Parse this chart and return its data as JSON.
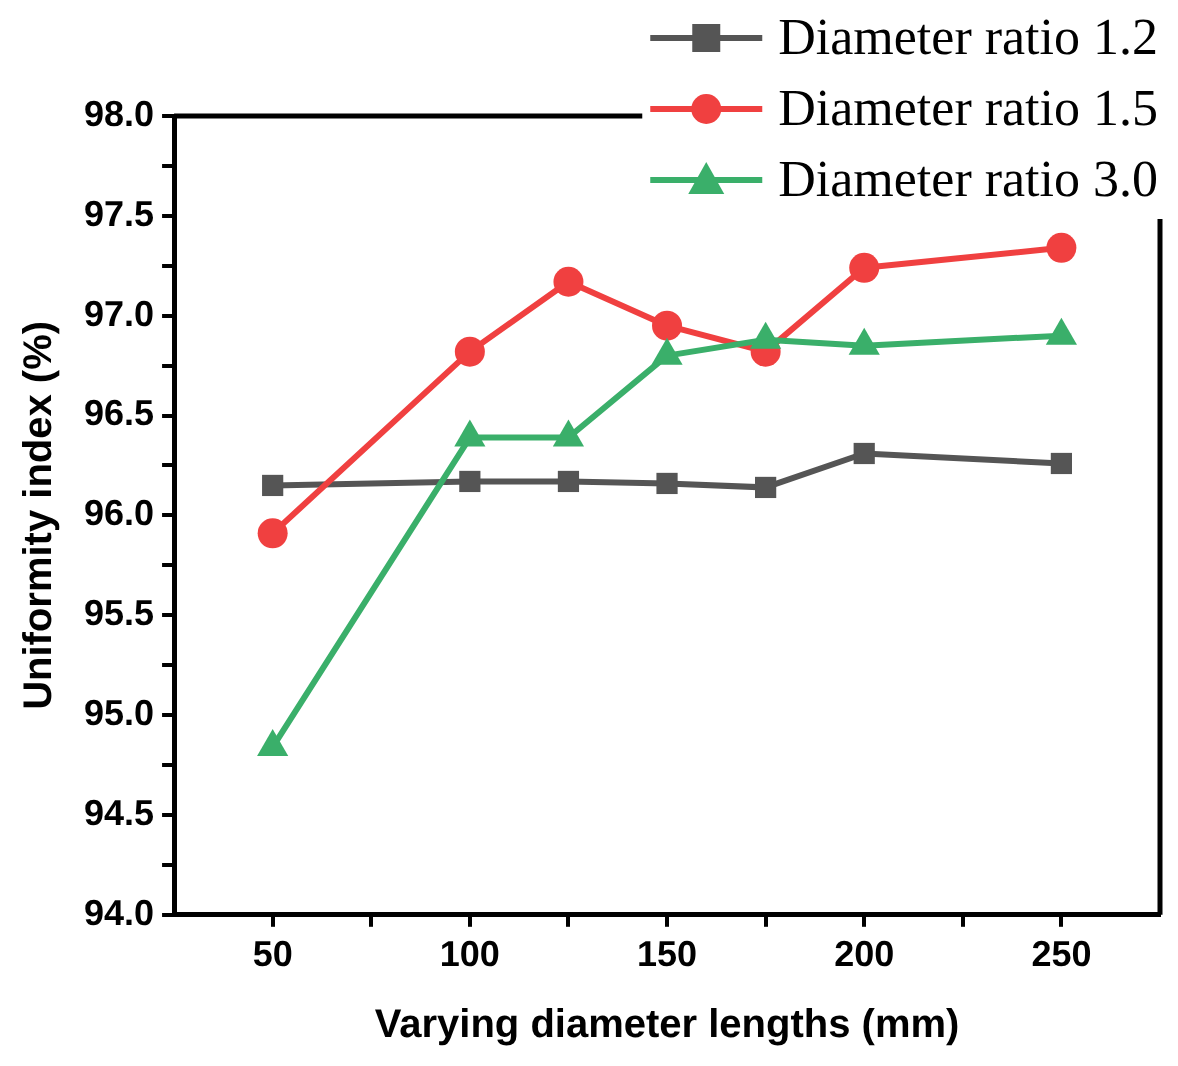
{
  "chart_data": {
    "type": "line",
    "xlabel": "Varying diameter lengths (mm)",
    "ylabel": "Uniformity index (%)",
    "x": [
      50,
      100,
      125,
      150,
      175,
      200,
      250
    ],
    "xlim": [
      25,
      275
    ],
    "xticks": [
      50,
      {
        "value": 75,
        "label": null
      },
      100,
      {
        "value": 125,
        "label": null
      },
      150,
      {
        "value": 175,
        "label": null
      },
      200,
      {
        "value": 225,
        "label": null
      },
      250
    ],
    "ylim": [
      94,
      98
    ],
    "yticks": [
      {
        "value": 94,
        "label": "94.0"
      },
      {
        "value": 94.25,
        "label": null
      },
      {
        "value": 94.5,
        "label": "94.5"
      },
      {
        "value": 94.75,
        "label": null
      },
      {
        "value": 95,
        "label": "95.0"
      },
      {
        "value": 95.25,
        "label": null
      },
      {
        "value": 95.5,
        "label": "95.5"
      },
      {
        "value": 95.75,
        "label": null
      },
      {
        "value": 96,
        "label": "96.0"
      },
      {
        "value": 96.25,
        "label": null
      },
      {
        "value": 96.5,
        "label": "96.5"
      },
      {
        "value": 96.75,
        "label": null
      },
      {
        "value": 97,
        "label": "97.0"
      },
      {
        "value": 97.25,
        "label": null
      },
      {
        "value": 97.5,
        "label": "97.5"
      },
      {
        "value": 97.75,
        "label": null
      },
      {
        "value": 98,
        "label": "98.0"
      }
    ],
    "grid": false,
    "legend": "top right",
    "line_style": "solid",
    "series": [
      {
        "name": "Diameter ratio 1.2",
        "color": "#555555",
        "marker": "square",
        "values": [
          96.15,
          96.17,
          96.17,
          96.16,
          96.14,
          96.31,
          96.26
        ]
      },
      {
        "name": "Diameter ratio 1.5",
        "color": "#f04040",
        "marker": "circle",
        "values": [
          95.91,
          96.82,
          97.17,
          96.95,
          96.82,
          97.24,
          97.34
        ]
      },
      {
        "name": "Diameter ratio 3.0",
        "color": "#3aaf6a",
        "marker": "triangle",
        "values": [
          94.84,
          96.39,
          96.39,
          96.8,
          96.88,
          96.85,
          96.9
        ]
      }
    ]
  }
}
